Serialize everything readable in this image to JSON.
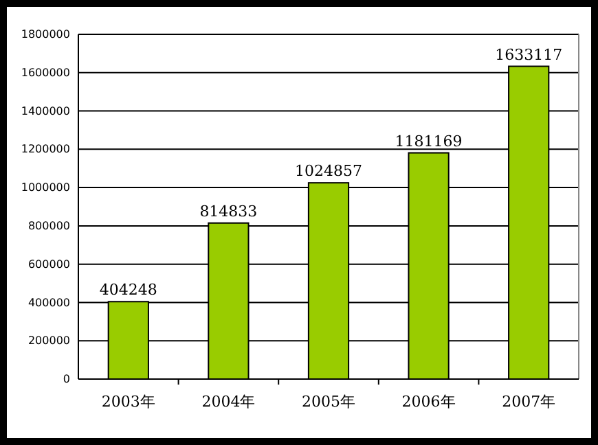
{
  "chart_data": {
    "type": "bar",
    "categories": [
      "2003年",
      "2004年",
      "2005年",
      "2006年",
      "2007年"
    ],
    "values": [
      404248,
      814833,
      1024857,
      1181169,
      1633117
    ],
    "color": "#99cc00",
    "ylim": [
      0,
      1800000
    ],
    "yticks": [
      0,
      200000,
      400000,
      600000,
      800000,
      1000000,
      1200000,
      1400000,
      1600000,
      1800000
    ],
    "grid": "y",
    "data_labels": true
  }
}
